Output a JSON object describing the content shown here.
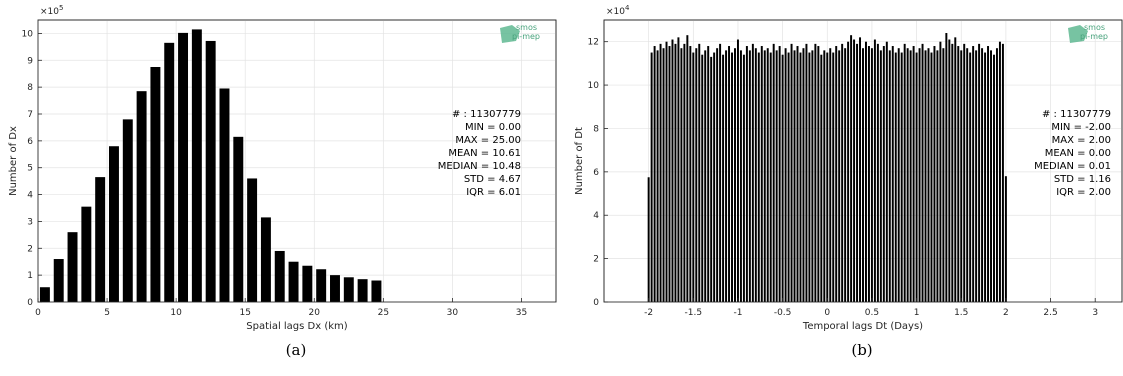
{
  "chart_data": [
    {
      "type": "bar",
      "caption": "(a)",
      "xlabel": "Spatial lags Dx (km)",
      "ylabel": "Number of Dx",
      "exponent_label": "×10",
      "exponent_power": "5",
      "xlim": [
        0,
        37.5
      ],
      "ylim": [
        0,
        10.5
      ],
      "xticks": [
        0,
        5,
        10,
        15,
        20,
        25,
        30,
        35
      ],
      "xtick_labels": [
        "0",
        "5",
        "10",
        "15",
        "20",
        "25",
        "30",
        "35"
      ],
      "yticks": [
        0,
        1,
        2,
        3,
        4,
        5,
        6,
        7,
        8,
        9,
        10
      ],
      "ytick_labels": [
        "0",
        "1",
        "2",
        "3",
        "4",
        "5",
        "6",
        "7",
        "8",
        "9",
        "10"
      ],
      "bar_width": 0.72,
      "x": [
        0.5,
        1.5,
        2.5,
        3.5,
        4.5,
        5.5,
        6.5,
        7.5,
        8.5,
        9.5,
        10.5,
        11.5,
        12.5,
        13.5,
        14.5,
        15.5,
        16.5,
        17.5,
        18.5,
        19.5,
        20.5,
        21.5,
        22.5,
        23.5,
        24.5
      ],
      "values": [
        0.55,
        1.6,
        2.6,
        3.55,
        4.65,
        5.8,
        6.8,
        7.85,
        8.75,
        9.65,
        10.02,
        10.15,
        9.72,
        7.95,
        6.15,
        4.6,
        3.15,
        1.9,
        1.5,
        1.35,
        1.22,
        1.0,
        0.92,
        0.85,
        0.8
      ],
      "bar_color": "#000000",
      "grid": true,
      "stats": [
        "# : 11307779",
        "MIN = 0.00",
        "MAX =  25.00",
        "MEAN = 10.61",
        "MEDIAN = 10.48",
        "STD = 4.67",
        "IQR = 6.01"
      ],
      "logo_lines": [
        "smos",
        "pi-mep"
      ]
    },
    {
      "type": "bar",
      "caption": "(b)",
      "xlabel": "Temporal lags Dt (Days)",
      "ylabel": "Number of Dt",
      "exponent_label": "×10",
      "exponent_power": "4",
      "xlim": [
        -2.5,
        3.3
      ],
      "ylim": [
        0,
        13
      ],
      "xticks": [
        -2,
        -1.5,
        -1,
        -0.5,
        0,
        0.5,
        1,
        1.5,
        2,
        2.5,
        3
      ],
      "xtick_labels": [
        "-2",
        "-1.5",
        "-1",
        "-0.5",
        "0",
        "0.5",
        "1",
        "1.5",
        "2",
        "2.5",
        "3"
      ],
      "yticks": [
        0,
        2,
        4,
        6,
        8,
        10,
        12
      ],
      "ytick_labels": [
        "0",
        "2",
        "4",
        "6",
        "8",
        "10",
        "12"
      ],
      "bar_width": 0.022,
      "x": [
        -2.0,
        -1.9667,
        -1.9333,
        -1.9,
        -1.8667,
        -1.8333,
        -1.8,
        -1.7667,
        -1.7333,
        -1.7,
        -1.6667,
        -1.6333,
        -1.6,
        -1.5667,
        -1.5333,
        -1.5,
        -1.4667,
        -1.4333,
        -1.4,
        -1.3667,
        -1.3333,
        -1.3,
        -1.2667,
        -1.2333,
        -1.2,
        -1.1667,
        -1.1333,
        -1.1,
        -1.0667,
        -1.0333,
        -1.0,
        -0.9667,
        -0.9333,
        -0.9,
        -0.8667,
        -0.8333,
        -0.8,
        -0.7667,
        -0.7333,
        -0.7,
        -0.6667,
        -0.6333,
        -0.6,
        -0.5667,
        -0.5333,
        -0.5,
        -0.4667,
        -0.4333,
        -0.4,
        -0.3667,
        -0.3333,
        -0.3,
        -0.2667,
        -0.2333,
        -0.2,
        -0.1667,
        -0.1333,
        -0.1,
        -0.0667,
        -0.0333,
        0.0,
        0.0333,
        0.0667,
        0.1,
        0.1333,
        0.1667,
        0.2,
        0.2333,
        0.2667,
        0.3,
        0.3333,
        0.3667,
        0.4,
        0.4333,
        0.4667,
        0.5,
        0.5333,
        0.5667,
        0.6,
        0.6333,
        0.6667,
        0.7,
        0.7333,
        0.7667,
        0.8,
        0.8333,
        0.8667,
        0.9,
        0.9333,
        0.9667,
        1.0,
        1.0333,
        1.0667,
        1.1,
        1.1333,
        1.1667,
        1.2,
        1.2333,
        1.2667,
        1.3,
        1.3333,
        1.3667,
        1.4,
        1.4333,
        1.4667,
        1.5,
        1.5333,
        1.5667,
        1.6,
        1.6333,
        1.6667,
        1.7,
        1.7333,
        1.7667,
        1.8,
        1.8333,
        1.8667,
        1.9,
        1.9333,
        1.9667,
        2.0
      ],
      "values": [
        5.75,
        11.5,
        11.8,
        11.6,
        11.9,
        11.7,
        12.0,
        11.8,
        12.1,
        11.9,
        12.2,
        11.7,
        11.9,
        12.3,
        11.8,
        11.5,
        11.7,
        11.9,
        11.4,
        11.6,
        11.8,
        11.3,
        11.5,
        11.7,
        11.9,
        11.4,
        11.6,
        11.8,
        11.5,
        11.7,
        12.1,
        11.6,
        11.4,
        11.8,
        11.6,
        11.9,
        11.7,
        11.5,
        11.8,
        11.6,
        11.7,
        11.5,
        11.9,
        11.6,
        11.8,
        11.4,
        11.7,
        11.5,
        11.9,
        11.6,
        11.8,
        11.5,
        11.7,
        11.9,
        11.5,
        11.6,
        11.9,
        11.8,
        11.4,
        11.6,
        11.5,
        11.7,
        11.5,
        11.8,
        11.6,
        11.9,
        11.7,
        12.0,
        12.3,
        12.1,
        11.9,
        12.2,
        11.7,
        12.0,
        11.8,
        11.7,
        12.1,
        11.9,
        11.6,
        11.8,
        12.0,
        11.6,
        11.8,
        11.5,
        11.7,
        11.5,
        11.9,
        11.7,
        11.6,
        11.8,
        11.5,
        11.7,
        11.9,
        11.6,
        11.7,
        11.5,
        11.8,
        11.6,
        12.0,
        11.7,
        12.4,
        12.1,
        11.9,
        12.2,
        11.8,
        11.6,
        11.9,
        11.7,
        11.5,
        11.8,
        11.6,
        11.9,
        11.7,
        11.5,
        11.8,
        11.6,
        11.4,
        11.7,
        12.0,
        11.9,
        5.8
      ],
      "bar_color": "#000000",
      "grid": true,
      "stats": [
        "# : 11307779",
        "MIN = -2.00",
        "MAX =  2.00",
        "MEAN = 0.00",
        "MEDIAN = 0.01",
        "STD = 1.16",
        "IQR = 2.00"
      ],
      "logo_lines": [
        "smos",
        "pi-mep"
      ]
    }
  ]
}
